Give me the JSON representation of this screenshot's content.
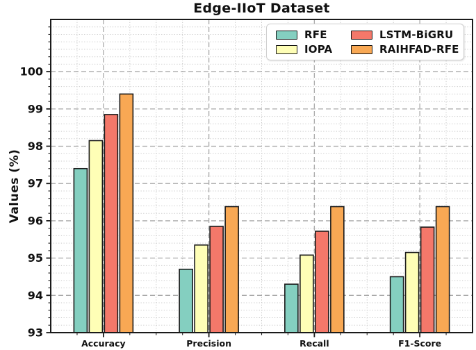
{
  "chart_data": {
    "type": "bar",
    "title": "Edge-IIoT Dataset",
    "xlabel": "",
    "ylabel": "Values (%)",
    "categories": [
      "Accuracy",
      "Precision",
      "Recall",
      "F1-Score"
    ],
    "series": [
      {
        "name": "RFE",
        "color": "#84CFC0",
        "values": [
          97.4,
          94.7,
          94.3,
          94.5
        ]
      },
      {
        "name": "IOPA",
        "color": "#FEFEB6",
        "values": [
          98.15,
          95.35,
          95.08,
          95.15
        ]
      },
      {
        "name": "LSTM-BiGRU",
        "color": "#F4786A",
        "values": [
          98.85,
          95.85,
          95.72,
          95.83
        ]
      },
      {
        "name": "RAIHFAD-RFE",
        "color": "#F8A854",
        "values": [
          99.4,
          96.38,
          96.38,
          96.38
        ]
      }
    ],
    "ylim": [
      93,
      101.4
    ],
    "yticks": [
      93,
      94,
      95,
      96,
      97,
      98,
      99,
      100
    ],
    "y_minor_step": 0.2,
    "x_minor_step": 0.25,
    "grid": {
      "major_style": "dashed",
      "minor_style": "dotted",
      "which": "both"
    },
    "legend_position": "upper right",
    "bar_edge_color": "#1a1a1a",
    "spine_color": "#1a1a1a"
  }
}
